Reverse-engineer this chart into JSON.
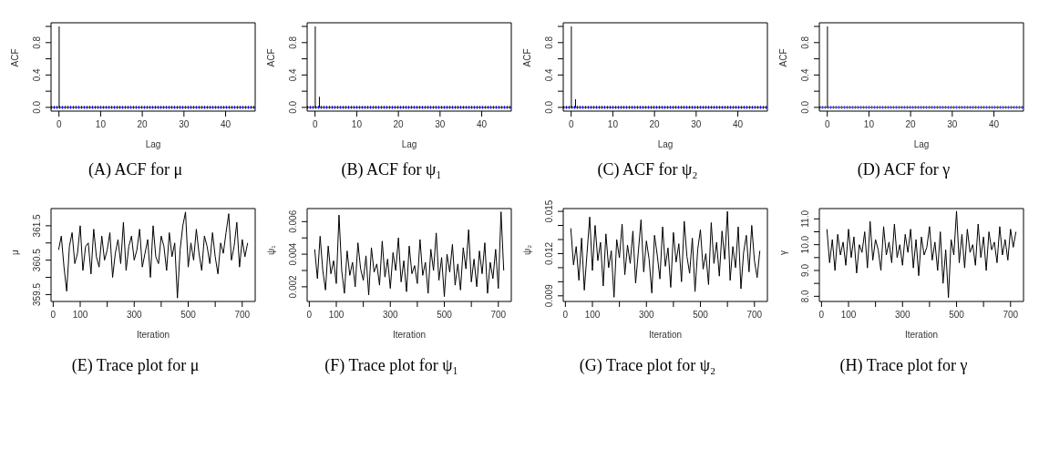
{
  "chart_data": [
    {
      "type": "bar",
      "title": "(A) ACF for μ",
      "xlabel": "Lag",
      "ylabel": "ACF",
      "color": "#000000",
      "x": [
        0,
        1,
        2,
        3,
        4,
        5,
        6,
        7,
        8,
        9,
        10,
        11,
        12,
        13,
        14,
        15,
        16,
        17,
        18,
        19,
        20,
        21,
        22,
        23,
        24,
        25,
        26,
        27,
        28,
        29,
        30,
        31,
        32,
        33,
        34,
        35,
        36,
        37,
        38,
        39,
        40,
        41,
        42,
        43,
        44,
        45
      ],
      "values": [
        1,
        0,
        0,
        0,
        0,
        0,
        0,
        0,
        0,
        0,
        0,
        0,
        0,
        0,
        0,
        0,
        0,
        0,
        0,
        0,
        0,
        0,
        0,
        0,
        0,
        0,
        0,
        0,
        0,
        0,
        0,
        0,
        0,
        0,
        0,
        0,
        0,
        0,
        0,
        0,
        0,
        0,
        0,
        0,
        0,
        0
      ],
      "xlim": [
        -1.9,
        47.1
      ],
      "xticks": [
        0,
        10,
        20,
        30,
        40
      ],
      "ylim": [
        -0.046,
        1.045
      ],
      "yticks": [
        {
          "value": 0,
          "label": "0.0"
        },
        {
          "value": 0.2,
          "label": null
        },
        {
          "value": 0.4,
          "label": "0.4"
        },
        {
          "value": 0.6,
          "label": null
        },
        {
          "value": 0.8,
          "label": "0.8"
        },
        {
          "value": 1,
          "label": null
        }
      ],
      "ref_lines": [
        {
          "axis": "y",
          "value": 0,
          "color": "#000000"
        },
        {
          "axis": "y",
          "value": 0.01,
          "color": "#0000ff",
          "line_style": "dotted"
        },
        {
          "axis": "y",
          "value": -0.01,
          "color": "#0000ff",
          "line_style": "dotted"
        }
      ]
    },
    {
      "type": "bar",
      "title": "(B) ACF for ψ₁",
      "xlabel": "Lag",
      "ylabel": "ACF",
      "color": "#000000",
      "x": [
        0,
        1,
        2,
        3,
        4,
        5,
        6,
        7,
        8,
        9,
        10,
        11,
        12,
        13,
        14,
        15,
        16,
        17,
        18,
        19,
        20,
        21,
        22,
        23,
        24,
        25,
        26,
        27,
        28,
        29,
        30,
        31,
        32,
        33,
        34,
        35,
        36,
        37,
        38,
        39,
        40,
        41,
        42,
        43,
        44,
        45
      ],
      "values": [
        1,
        0.13,
        0,
        0,
        0,
        0,
        0,
        0,
        0,
        0,
        0,
        0,
        0,
        0,
        0,
        0,
        0,
        0,
        0,
        0,
        0,
        0,
        0,
        0,
        0,
        0,
        0,
        0,
        0,
        0,
        0,
        0,
        0,
        0,
        0,
        0,
        0,
        0,
        0,
        0,
        0,
        0,
        0,
        0,
        0,
        0
      ],
      "xlim": [
        -1.9,
        47.1
      ],
      "xticks": [
        0,
        10,
        20,
        30,
        40
      ],
      "ylim": [
        -0.046,
        1.045
      ],
      "yticks": [
        {
          "value": 0,
          "label": "0.0"
        },
        {
          "value": 0.2,
          "label": null
        },
        {
          "value": 0.4,
          "label": "0.4"
        },
        {
          "value": 0.6,
          "label": null
        },
        {
          "value": 0.8,
          "label": "0.8"
        },
        {
          "value": 1,
          "label": null
        }
      ],
      "ref_lines": [
        {
          "axis": "y",
          "value": 0,
          "color": "#000000"
        },
        {
          "axis": "y",
          "value": 0.01,
          "color": "#0000ff",
          "line_style": "dotted"
        },
        {
          "axis": "y",
          "value": -0.01,
          "color": "#0000ff",
          "line_style": "dotted"
        }
      ]
    },
    {
      "type": "bar",
      "title": "(C) ACF for ψ₂",
      "xlabel": "Lag",
      "ylabel": "ACF",
      "color": "#000000",
      "x": [
        0,
        1,
        2,
        3,
        4,
        5,
        6,
        7,
        8,
        9,
        10,
        11,
        12,
        13,
        14,
        15,
        16,
        17,
        18,
        19,
        20,
        21,
        22,
        23,
        24,
        25,
        26,
        27,
        28,
        29,
        30,
        31,
        32,
        33,
        34,
        35,
        36,
        37,
        38,
        39,
        40,
        41,
        42,
        43,
        44,
        45
      ],
      "values": [
        1,
        0.1,
        0,
        0,
        0,
        0,
        0,
        0,
        0,
        0,
        0,
        0,
        0,
        0,
        0,
        0,
        0,
        0,
        0,
        0,
        0,
        0,
        0,
        0,
        0,
        0,
        0,
        0,
        0,
        0,
        0,
        0,
        0,
        0,
        0,
        0,
        0,
        0,
        0,
        0,
        0,
        0,
        0,
        0,
        0,
        0
      ],
      "xlim": [
        -1.9,
        47.1
      ],
      "xticks": [
        0,
        10,
        20,
        30,
        40
      ],
      "ylim": [
        -0.046,
        1.045
      ],
      "yticks": [
        {
          "value": 0,
          "label": "0.0"
        },
        {
          "value": 0.2,
          "label": null
        },
        {
          "value": 0.4,
          "label": "0.4"
        },
        {
          "value": 0.6,
          "label": null
        },
        {
          "value": 0.8,
          "label": "0.8"
        },
        {
          "value": 1,
          "label": null
        }
      ],
      "ref_lines": [
        {
          "axis": "y",
          "value": 0,
          "color": "#000000"
        },
        {
          "axis": "y",
          "value": 0.01,
          "color": "#0000ff",
          "line_style": "dotted"
        },
        {
          "axis": "y",
          "value": -0.01,
          "color": "#0000ff",
          "line_style": "dotted"
        }
      ]
    },
    {
      "type": "bar",
      "title": "(D) ACF for γ",
      "xlabel": "Lag",
      "ylabel": "ACF",
      "color": "#000000",
      "x": [
        0,
        1,
        2,
        3,
        4,
        5,
        6,
        7,
        8,
        9,
        10,
        11,
        12,
        13,
        14,
        15,
        16,
        17,
        18,
        19,
        20,
        21,
        22,
        23,
        24,
        25,
        26,
        27,
        28,
        29,
        30,
        31,
        32,
        33,
        34,
        35,
        36,
        37,
        38,
        39,
        40,
        41,
        42,
        43,
        44,
        45
      ],
      "values": [
        1,
        0,
        0,
        0,
        0,
        0,
        0,
        0,
        0,
        0,
        0,
        0,
        0,
        0,
        0,
        0,
        0,
        0,
        0,
        0,
        0,
        0,
        0,
        0,
        0,
        0,
        0,
        0,
        0,
        0,
        0,
        0,
        0,
        0,
        0,
        0,
        0,
        0,
        0,
        0,
        0,
        0,
        0,
        0,
        0,
        0
      ],
      "xlim": [
        -1.9,
        47.1
      ],
      "xticks": [
        0,
        10,
        20,
        30,
        40
      ],
      "ylim": [
        -0.046,
        1.045
      ],
      "yticks": [
        {
          "value": 0,
          "label": "0.0"
        },
        {
          "value": 0.2,
          "label": null
        },
        {
          "value": 0.4,
          "label": "0.4"
        },
        {
          "value": 0.6,
          "label": null
        },
        {
          "value": 0.8,
          "label": "0.8"
        },
        {
          "value": 1,
          "label": null
        }
      ],
      "ref_lines": [
        {
          "axis": "y",
          "value": 0,
          "color": "#000000"
        },
        {
          "axis": "y",
          "value": 0.01,
          "color": "#4040ff",
          "line_style": "dotted"
        },
        {
          "axis": "y",
          "value": -0.01,
          "color": "#4040ff",
          "line_style": "dotted"
        }
      ]
    },
    {
      "type": "line",
      "title": "(E) Trace plot for μ",
      "xlabel": "Iteration",
      "ylabel": "μ",
      "color": "#000000",
      "x": [
        20,
        30,
        40,
        50,
        60,
        70,
        80,
        90,
        100,
        110,
        120,
        130,
        140,
        150,
        160,
        170,
        180,
        190,
        200,
        210,
        220,
        230,
        240,
        250,
        260,
        270,
        280,
        290,
        300,
        310,
        320,
        330,
        340,
        350,
        360,
        370,
        380,
        390,
        400,
        410,
        420,
        430,
        440,
        450,
        460,
        470,
        480,
        490,
        500,
        510,
        520,
        530,
        540,
        550,
        560,
        570,
        580,
        590,
        600,
        610,
        620,
        630,
        640,
        650,
        660,
        670,
        680,
        690,
        700,
        710,
        720
      ],
      "values": [
        360.8,
        361.2,
        360.3,
        359.6,
        360.9,
        361.3,
        360.4,
        360.7,
        361.5,
        360.2,
        360.9,
        361.0,
        360.1,
        361.4,
        360.6,
        360.3,
        361.2,
        360.5,
        360.8,
        361.3,
        360.0,
        360.7,
        361.1,
        360.4,
        361.6,
        360.2,
        360.9,
        361.2,
        360.5,
        360.8,
        361.4,
        360.3,
        360.7,
        361.1,
        360.0,
        361.5,
        360.6,
        360.4,
        361.2,
        360.9,
        360.2,
        361.3,
        360.6,
        361.0,
        359.4,
        360.8,
        361.5,
        361.9,
        360.3,
        361.0,
        360.5,
        361.4,
        360.7,
        360.2,
        361.2,
        360.9,
        360.4,
        361.3,
        360.6,
        360.1,
        361.0,
        360.7,
        361.3,
        361.85,
        360.5,
        360.9,
        361.6,
        360.3,
        361.1,
        360.6,
        361.0
      ],
      "xlim": [
        -8,
        748
      ],
      "xticks": [
        0,
        100,
        {
          "value": 200,
          "label": null
        },
        300,
        {
          "value": 400,
          "label": null
        },
        500,
        {
          "value": 600,
          "label": null
        },
        700
      ],
      "ylim": [
        359.3,
        362.0
      ],
      "yticks": [
        359.5,
        {
          "value": 360,
          "label": null
        },
        360.5,
        {
          "value": 361,
          "label": null
        },
        361.5
      ]
    },
    {
      "type": "line",
      "title": "(F) Trace plot for ψ₁",
      "xlabel": "Iteration",
      "ylabel": "ψ₁",
      "color": "#000000",
      "x": [
        20,
        30,
        40,
        50,
        60,
        70,
        80,
        90,
        100,
        110,
        120,
        130,
        140,
        150,
        160,
        170,
        180,
        190,
        200,
        210,
        220,
        230,
        240,
        250,
        260,
        270,
        280,
        290,
        300,
        310,
        320,
        330,
        340,
        350,
        360,
        370,
        380,
        390,
        400,
        410,
        420,
        430,
        440,
        450,
        460,
        470,
        480,
        490,
        500,
        510,
        520,
        530,
        540,
        550,
        560,
        570,
        580,
        590,
        600,
        610,
        620,
        630,
        640,
        650,
        660,
        670,
        680,
        690,
        700,
        710,
        720
      ],
      "values": [
        0.0043,
        0.0025,
        0.0051,
        0.003,
        0.0018,
        0.0045,
        0.0028,
        0.0036,
        0.0022,
        0.0064,
        0.003,
        0.0016,
        0.0042,
        0.0027,
        0.0035,
        0.002,
        0.0047,
        0.0031,
        0.0024,
        0.0039,
        0.0015,
        0.0044,
        0.0029,
        0.0034,
        0.0021,
        0.0048,
        0.0026,
        0.0037,
        0.0019,
        0.0041,
        0.003,
        0.005,
        0.0023,
        0.0036,
        0.0017,
        0.0045,
        0.0028,
        0.0033,
        0.0022,
        0.0049,
        0.0027,
        0.0035,
        0.0016,
        0.0043,
        0.003,
        0.0053,
        0.0024,
        0.0038,
        0.0014,
        0.004,
        0.0029,
        0.0046,
        0.0021,
        0.0034,
        0.0018,
        0.0044,
        0.0031,
        0.0055,
        0.0023,
        0.0037,
        0.002,
        0.0042,
        0.0028,
        0.0047,
        0.0016,
        0.0035,
        0.0025,
        0.0043,
        0.0019,
        0.0066,
        0.003
      ],
      "xlim": [
        -8,
        748
      ],
      "xticks": [
        0,
        100,
        {
          "value": 200,
          "label": null
        },
        300,
        {
          "value": 400,
          "label": null
        },
        500,
        {
          "value": 600,
          "label": null
        },
        700
      ],
      "ylim": [
        0.0011,
        0.0068
      ],
      "yticks": [
        0.002,
        {
          "value": 0.003,
          "label": null
        },
        0.004,
        {
          "value": 0.005,
          "label": null
        },
        0.006
      ]
    },
    {
      "type": "line",
      "title": "(G) Trace plot for ψ₂",
      "xlabel": "Iteration",
      "ylabel": "ψ₂",
      "color": "#000000",
      "x": [
        20,
        30,
        40,
        50,
        60,
        70,
        80,
        90,
        100,
        110,
        120,
        130,
        140,
        150,
        160,
        170,
        180,
        190,
        200,
        210,
        220,
        230,
        240,
        250,
        260,
        270,
        280,
        290,
        300,
        310,
        320,
        330,
        340,
        350,
        360,
        370,
        380,
        390,
        400,
        410,
        420,
        430,
        440,
        450,
        460,
        470,
        480,
        490,
        500,
        510,
        520,
        530,
        540,
        550,
        560,
        570,
        580,
        590,
        600,
        610,
        620,
        630,
        640,
        650,
        660,
        670,
        680,
        690,
        700,
        710,
        720
      ],
      "values": [
        0.0138,
        0.0112,
        0.0125,
        0.0101,
        0.0131,
        0.0094,
        0.012,
        0.0146,
        0.0108,
        0.014,
        0.0115,
        0.0128,
        0.0097,
        0.0134,
        0.011,
        0.0122,
        0.0089,
        0.013,
        0.0117,
        0.0141,
        0.0105,
        0.0126,
        0.0113,
        0.0136,
        0.0099,
        0.0121,
        0.0144,
        0.0107,
        0.0129,
        0.0116,
        0.0092,
        0.0133,
        0.0119,
        0.0102,
        0.0139,
        0.0111,
        0.0124,
        0.0096,
        0.0135,
        0.0114,
        0.0127,
        0.01,
        0.0143,
        0.0118,
        0.0106,
        0.0131,
        0.0093,
        0.0123,
        0.0137,
        0.0109,
        0.012,
        0.0098,
        0.0142,
        0.0113,
        0.0128,
        0.0104,
        0.0136,
        0.0116,
        0.015,
        0.0101,
        0.0125,
        0.011,
        0.0139,
        0.0095,
        0.0121,
        0.0133,
        0.0107,
        0.014,
        0.0115,
        0.0103,
        0.0122
      ],
      "xlim": [
        -8,
        748
      ],
      "xticks": [
        0,
        100,
        {
          "value": 200,
          "label": null
        },
        300,
        {
          "value": 400,
          "label": null
        },
        500,
        {
          "value": 600,
          "label": null
        },
        700
      ],
      "ylim": [
        0.0086,
        0.0152
      ],
      "yticks": [
        0.009,
        {
          "value": 0.01,
          "label": null
        },
        {
          "value": 0.011,
          "label": null
        },
        0.012,
        {
          "value": 0.013,
          "label": null
        },
        {
          "value": 0.014,
          "label": null
        },
        0.015
      ]
    },
    {
      "type": "line",
      "title": "(H) Trace plot for γ",
      "xlabel": "Iteration",
      "ylabel": "γ",
      "color": "#000000",
      "x": [
        20,
        30,
        40,
        50,
        60,
        70,
        80,
        90,
        100,
        110,
        120,
        130,
        140,
        150,
        160,
        170,
        180,
        190,
        200,
        210,
        220,
        230,
        240,
        250,
        260,
        270,
        280,
        290,
        300,
        310,
        320,
        330,
        340,
        350,
        360,
        370,
        380,
        390,
        400,
        410,
        420,
        430,
        440,
        450,
        460,
        470,
        480,
        490,
        500,
        510,
        520,
        530,
        540,
        550,
        560,
        570,
        580,
        590,
        600,
        610,
        620,
        630,
        640,
        650,
        660,
        670,
        680,
        690,
        700,
        710,
        720
      ],
      "values": [
        10.6,
        9.3,
        10.2,
        9.0,
        10.4,
        9.6,
        10.1,
        9.2,
        10.6,
        9.5,
        10.3,
        8.9,
        10.0,
        9.7,
        10.5,
        9.1,
        10.9,
        9.4,
        10.2,
        9.8,
        9.0,
        10.7,
        9.6,
        10.1,
        9.3,
        10.8,
        9.5,
        10.0,
        9.2,
        10.4,
        9.7,
        10.6,
        9.1,
        10.2,
        8.8,
        10.3,
        9.6,
        9.9,
        10.7,
        9.4,
        10.1,
        9.0,
        10.5,
        8.5,
        9.8,
        7.95,
        10.2,
        9.6,
        11.3,
        9.3,
        10.4,
        9.1,
        10.6,
        9.7,
        10.0,
        9.2,
        10.8,
        9.5,
        10.3,
        9.0,
        10.5,
        9.8,
        10.1,
        9.3,
        10.7,
        9.6,
        10.2,
        9.4,
        10.6,
        9.9,
        10.5
      ],
      "xlim": [
        -8,
        748
      ],
      "xticks": [
        0,
        100,
        {
          "value": 200,
          "label": null
        },
        300,
        {
          "value": 400,
          "label": null
        },
        500,
        {
          "value": 600,
          "label": null
        },
        700
      ],
      "ylim": [
        7.8,
        11.4
      ],
      "yticks": [
        {
          "value": 8,
          "label": "8.0"
        },
        {
          "value": 8.5,
          "label": null
        },
        {
          "value": 9,
          "label": "9.0"
        },
        {
          "value": 9.5,
          "label": null
        },
        {
          "value": 10,
          "label": "10.0"
        },
        {
          "value": 10.5,
          "label": null
        },
        {
          "value": 11,
          "label": "11.0"
        }
      ]
    }
  ]
}
